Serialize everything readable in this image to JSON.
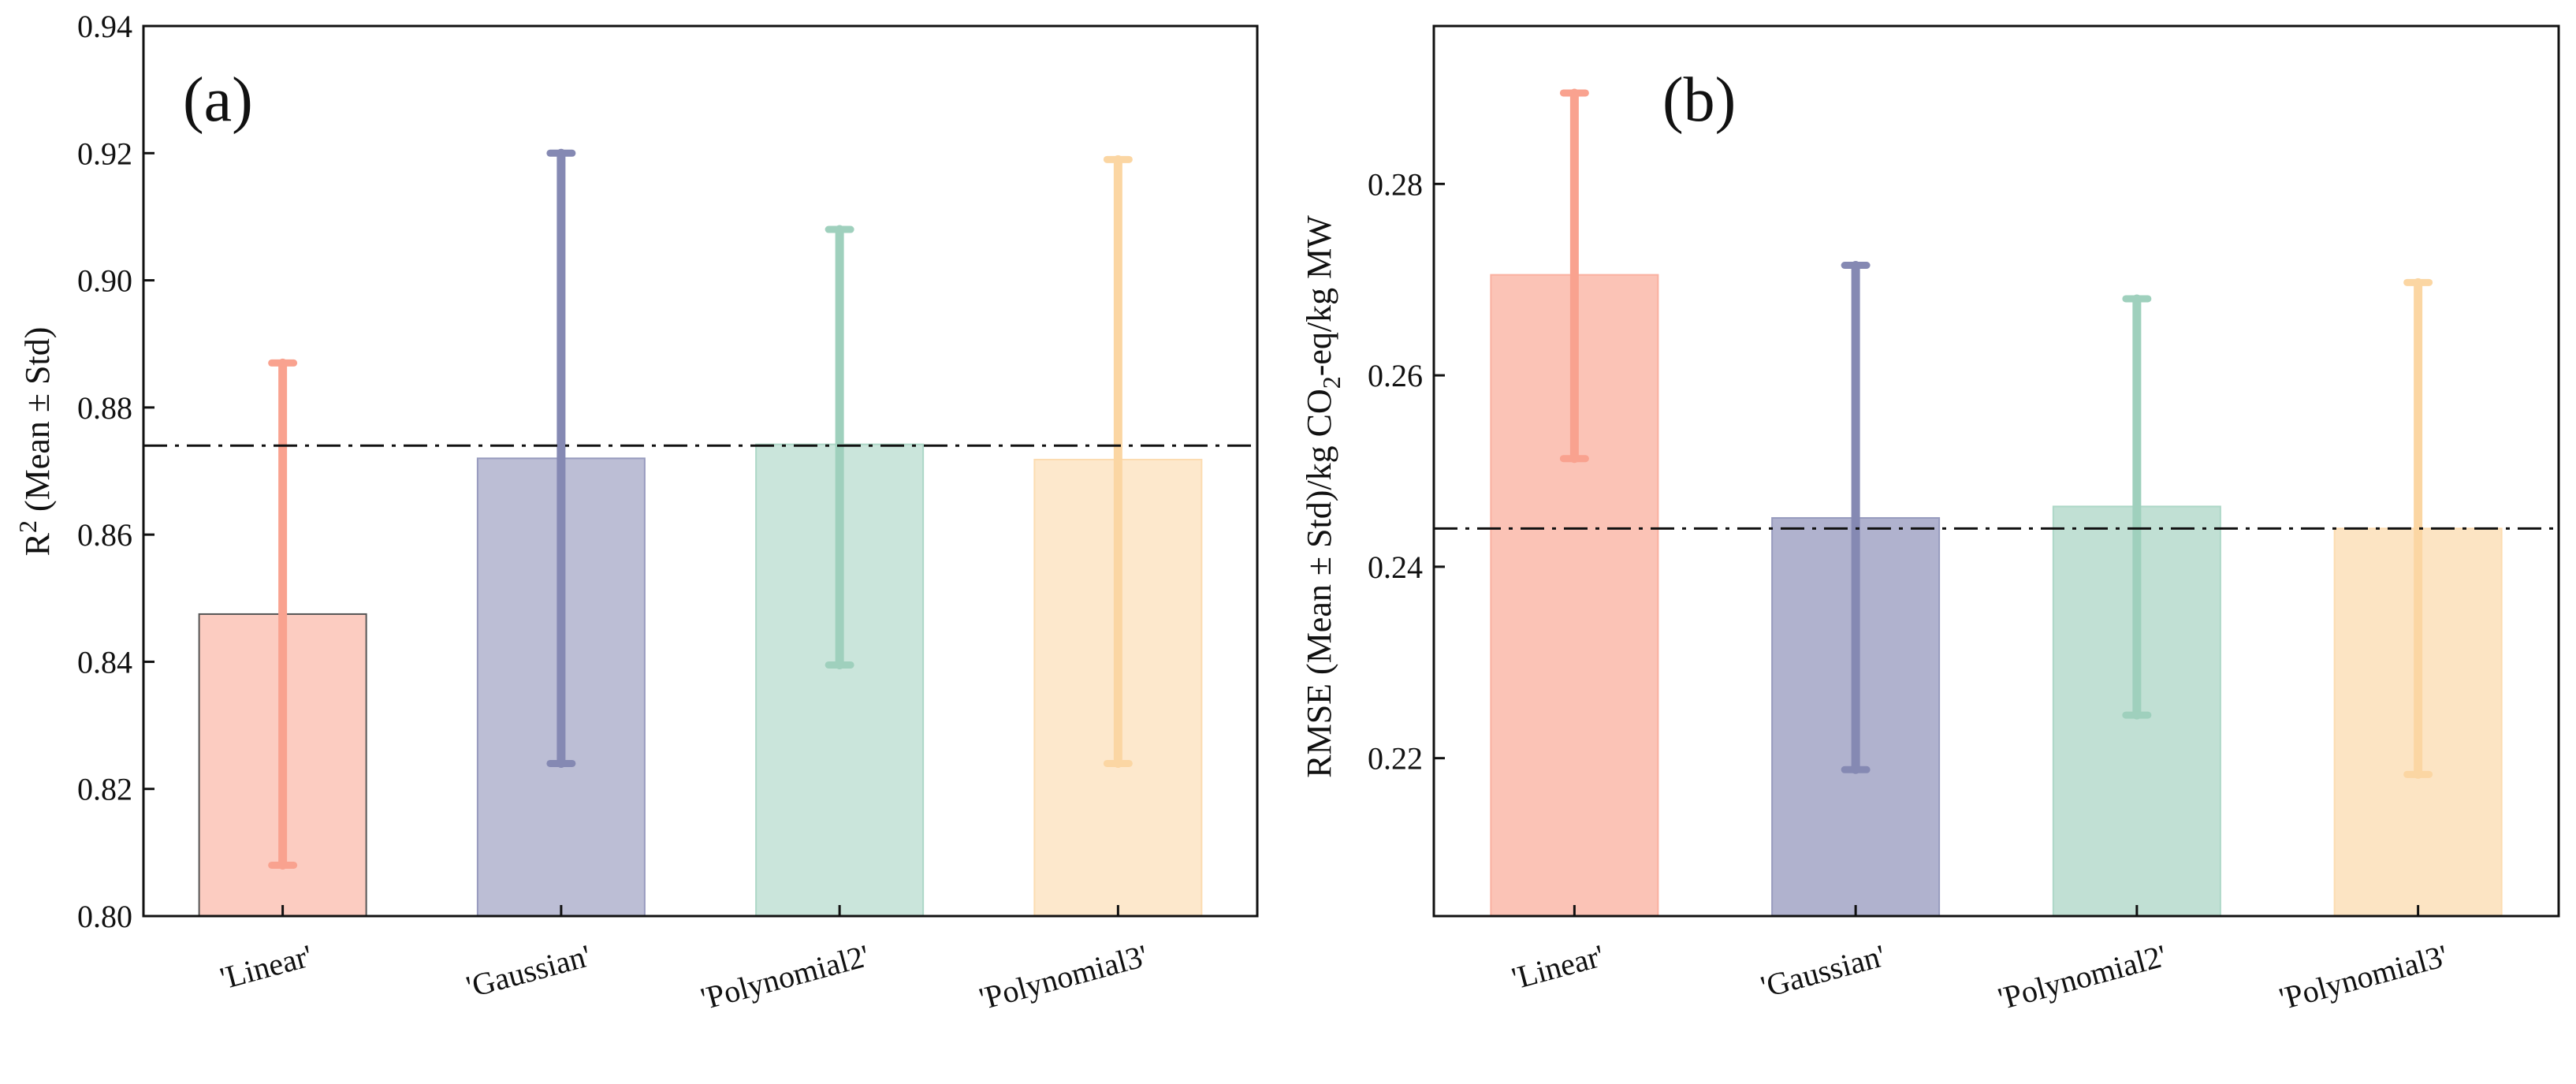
{
  "colors": {
    "Linear": "#f9a28f",
    "Gaussian": "#8589b3",
    "Polynomial2": "#9fd0bd",
    "Polynomial3": "#fbd6a3",
    "axis": "#111111",
    "reference_line": "#111111"
  },
  "chart_data": [
    {
      "type": "bar",
      "panel_label": "(a)",
      "categories": [
        "'Linear'",
        "'Gaussian'",
        "'Polynomial2'",
        "'Polynomial3'"
      ],
      "series": [
        {
          "values": [
            0.8475,
            0.872,
            0.8742,
            0.8718
          ],
          "error_low": [
            0.808,
            0.824,
            0.8395,
            0.824
          ],
          "error_high": [
            0.887,
            0.92,
            0.908,
            0.919
          ]
        }
      ],
      "ylabel": {
        "main": "R",
        "sup": "2",
        "rest": "  (Mean ± Std)"
      },
      "ylim": [
        0.8,
        0.94
      ],
      "yticks": [
        "0.80",
        "0.82",
        "0.84",
        "0.86",
        "0.88",
        "0.90",
        "0.92",
        "0.94"
      ],
      "reference_line": 0.874,
      "reference_line_style": "dash-dot",
      "grid": false
    },
    {
      "type": "bar",
      "panel_label": "(b)",
      "categories": [
        "'Linear'",
        "'Gaussian'",
        "'Polynomial2'",
        "'Polynomial3'"
      ],
      "series": [
        {
          "values": [
            0.2705,
            0.2451,
            0.2463,
            0.244
          ],
          "error_low": [
            0.2513,
            0.2188,
            0.2245,
            0.2183
          ],
          "error_high": [
            0.2895,
            0.2715,
            0.268,
            0.2697
          ]
        }
      ],
      "ylabel": {
        "main": "RMSE (Mean ± Std)/kg CO",
        "sub": "2",
        "rest": "-eq/kg MW"
      },
      "ylim": [
        0.2035,
        0.2965
      ],
      "yticks": [
        "0.22",
        "0.24",
        "0.26",
        "0.28"
      ],
      "reference_line": 0.244,
      "reference_line_style": "dash-dot",
      "grid": false
    }
  ]
}
